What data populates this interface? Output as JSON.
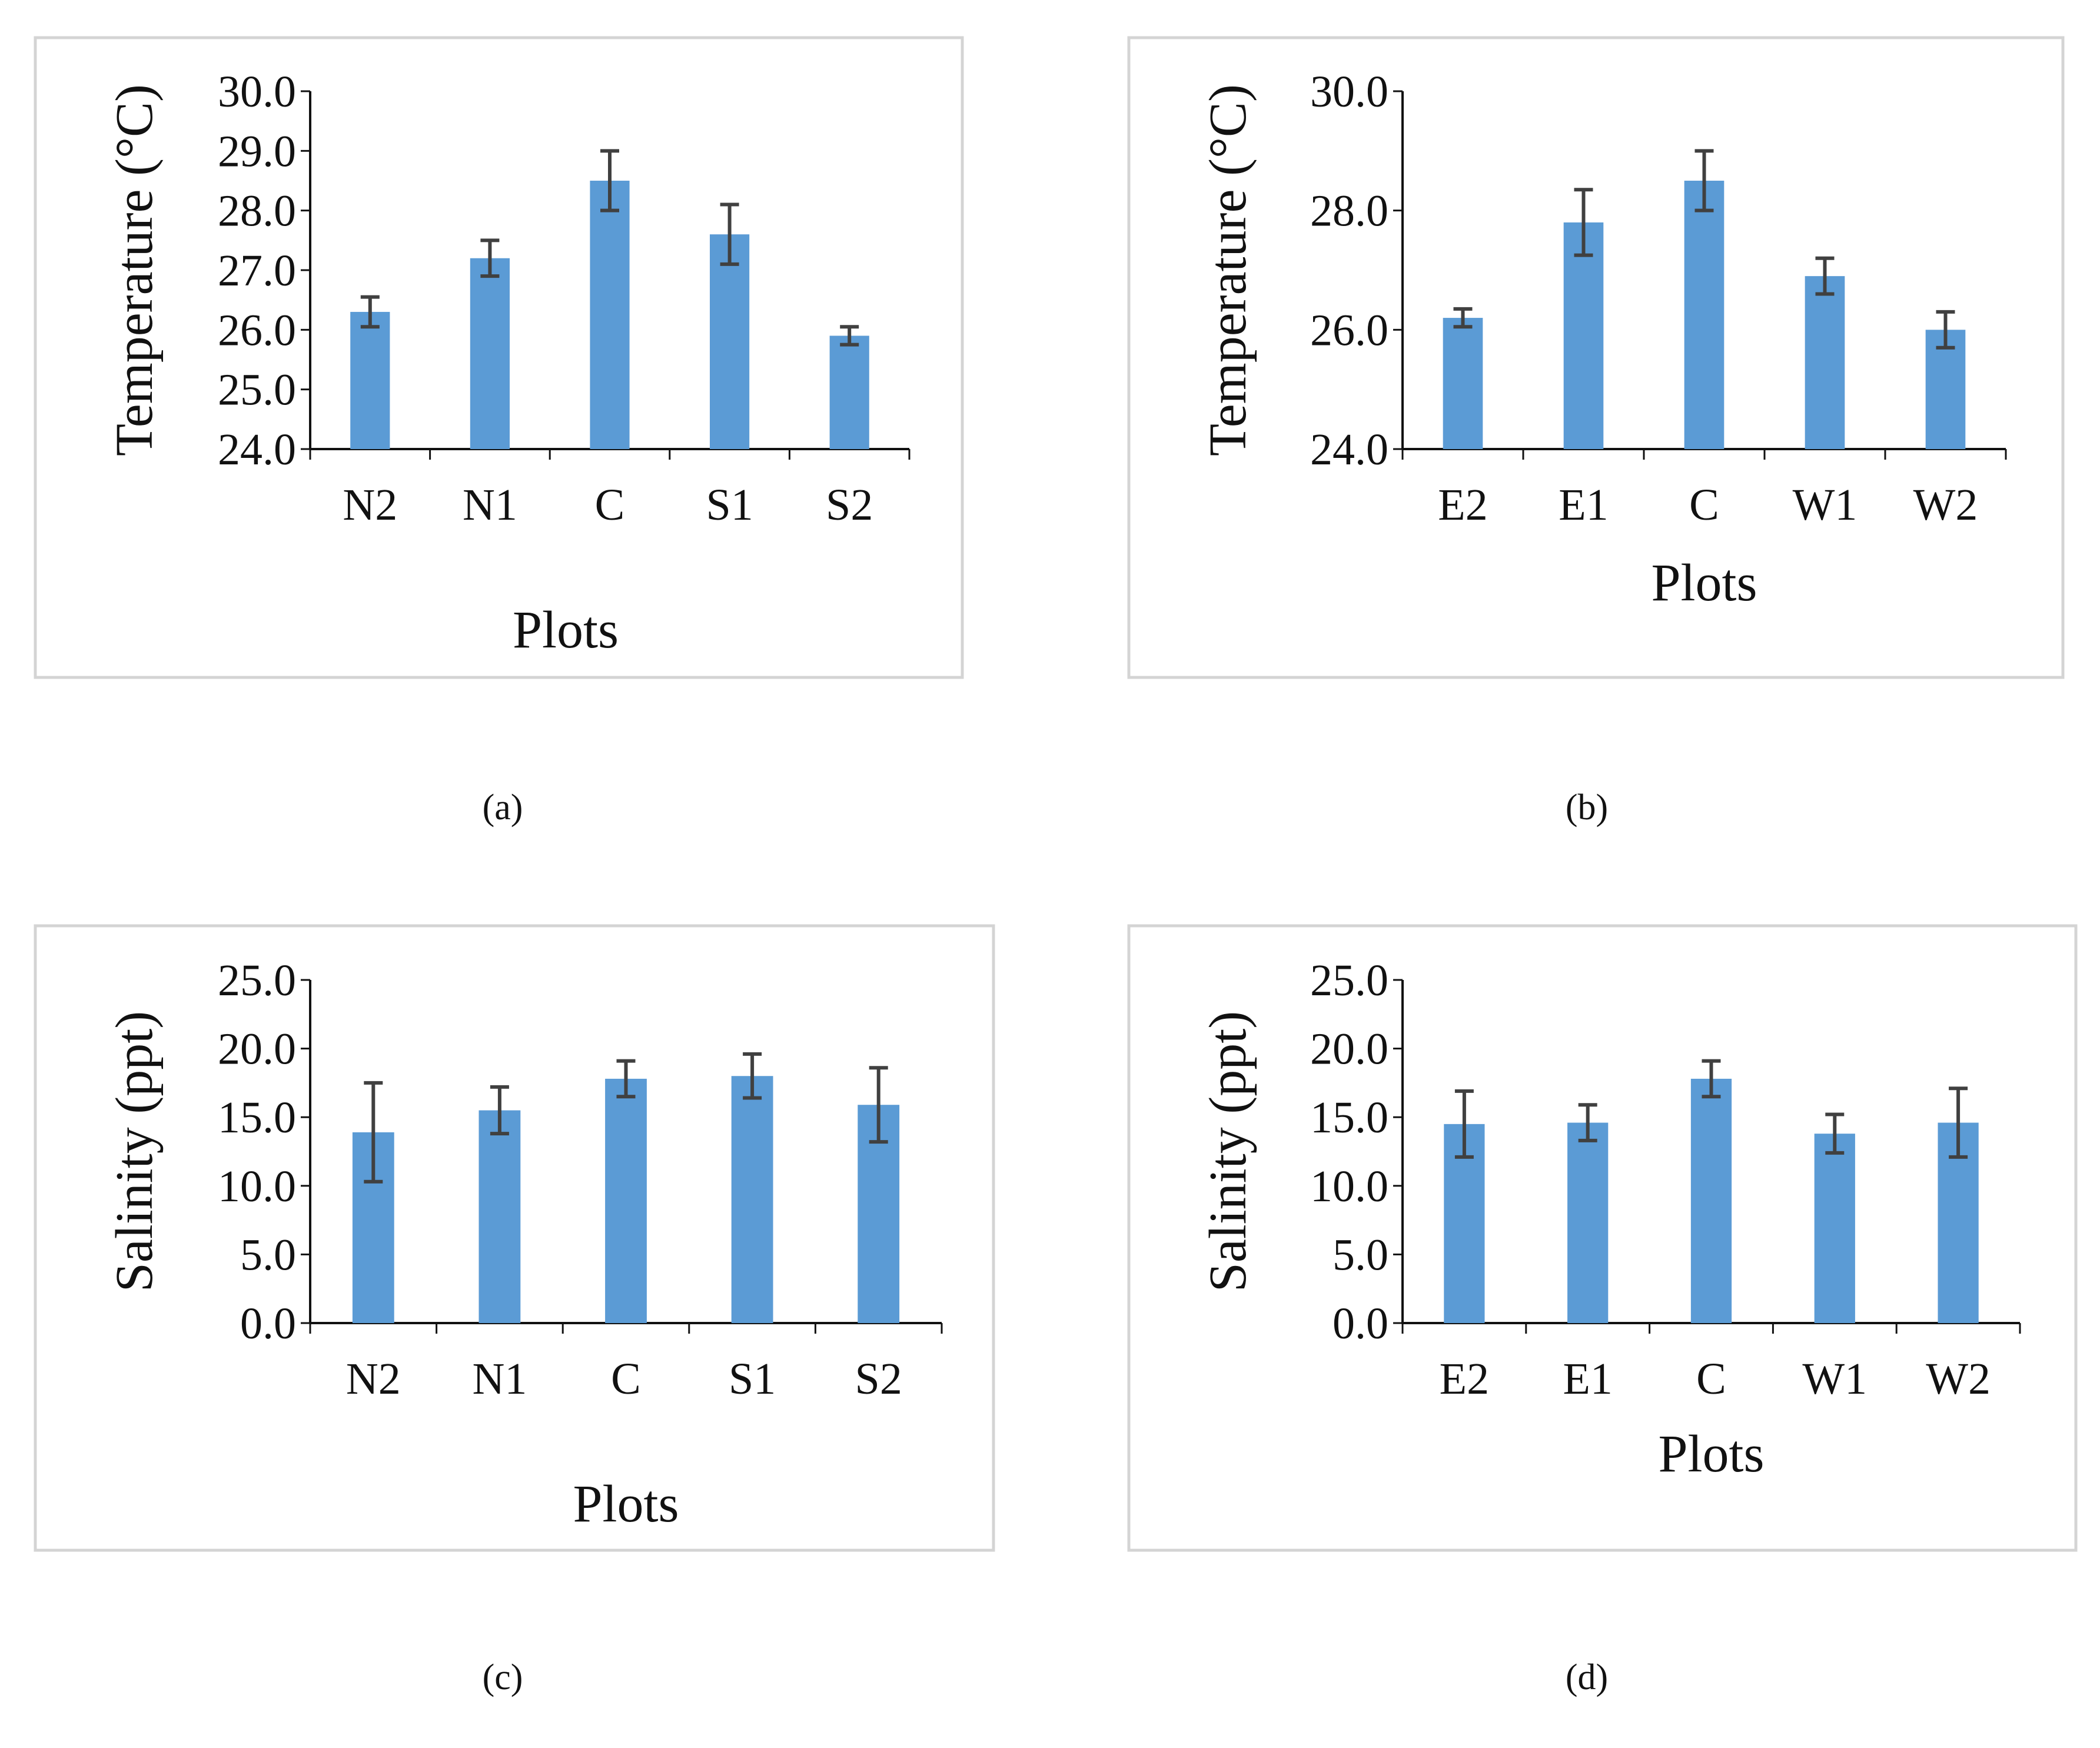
{
  "figure": {
    "panels": [
      "(a)",
      "(b)",
      "(c)",
      "(d)"
    ]
  },
  "chart_data": [
    {
      "type": "bar",
      "panel_label": "(a)",
      "categories": [
        "N2",
        "N1",
        "C",
        "S1",
        "S2"
      ],
      "values": [
        26.3,
        27.2,
        28.5,
        27.6,
        25.9
      ],
      "error": [
        0.25,
        0.3,
        0.5,
        0.5,
        0.15
      ],
      "xlabel": "Plots",
      "ylabel": "Temperature (°C)",
      "ylim": [
        24.0,
        30.0
      ],
      "yticks": [
        "24.0",
        "25.0",
        "26.0",
        "27.0",
        "28.0",
        "29.0",
        "30.0"
      ],
      "grid": false,
      "color": "#5b9bd5"
    },
    {
      "type": "bar",
      "panel_label": "(b)",
      "categories": [
        "E2",
        "E1",
        "C",
        "W1",
        "W2"
      ],
      "values": [
        26.2,
        27.8,
        28.5,
        26.9,
        26.0
      ],
      "error": [
        0.15,
        0.55,
        0.5,
        0.3,
        0.3
      ],
      "xlabel": "Plots",
      "ylabel": "Temperature (°C)",
      "ylim": [
        24.0,
        30.0
      ],
      "yticks": [
        "24.0",
        "26.0",
        "28.0",
        "30.0"
      ],
      "grid": false,
      "color": "#5b9bd5"
    },
    {
      "type": "bar",
      "panel_label": "(c)",
      "categories": [
        "N2",
        "N1",
        "C",
        "S1",
        "S2"
      ],
      "values": [
        13.9,
        15.5,
        17.8,
        18.0,
        15.9
      ],
      "error": [
        3.6,
        1.7,
        1.3,
        1.6,
        2.7
      ],
      "xlabel": "Plots",
      "ylabel": "Salinity (ppt)",
      "ylim": [
        0.0,
        25.0
      ],
      "yticks": [
        "0.0",
        "5.0",
        "10.0",
        "15.0",
        "20.0",
        "25.0"
      ],
      "grid": false,
      "color": "#5b9bd5"
    },
    {
      "type": "bar",
      "panel_label": "(d)",
      "categories": [
        "E2",
        "E1",
        "C",
        "W1",
        "W2"
      ],
      "values": [
        14.5,
        14.6,
        17.8,
        13.8,
        14.6
      ],
      "error": [
        2.4,
        1.3,
        1.3,
        1.4,
        2.5
      ],
      "xlabel": "Plots",
      "ylabel": "Salinity (ppt)",
      "ylim": [
        0.0,
        25.0
      ],
      "yticks": [
        "0.0",
        "5.0",
        "10.0",
        "15.0",
        "20.0",
        "25.0"
      ],
      "grid": false,
      "color": "#5b9bd5"
    }
  ]
}
